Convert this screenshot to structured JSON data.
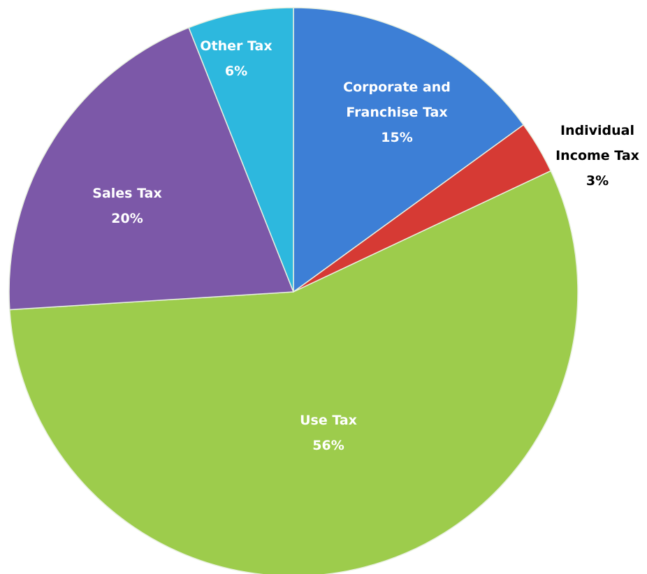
{
  "chart_data": {
    "type": "pie",
    "categories": [
      "Corporate and Franchise Tax",
      "Individual Income Tax",
      "Use Tax",
      "Sales Tax",
      "Other Tax"
    ],
    "values": [
      15,
      3,
      56,
      20,
      6
    ],
    "value_labels": [
      "15%",
      "3%",
      "56%",
      "20%",
      "6%"
    ],
    "colors": [
      "#3d7fd6",
      "#d63a34",
      "#9dcc4c",
      "#7c58a8",
      "#2db8de"
    ]
  }
}
